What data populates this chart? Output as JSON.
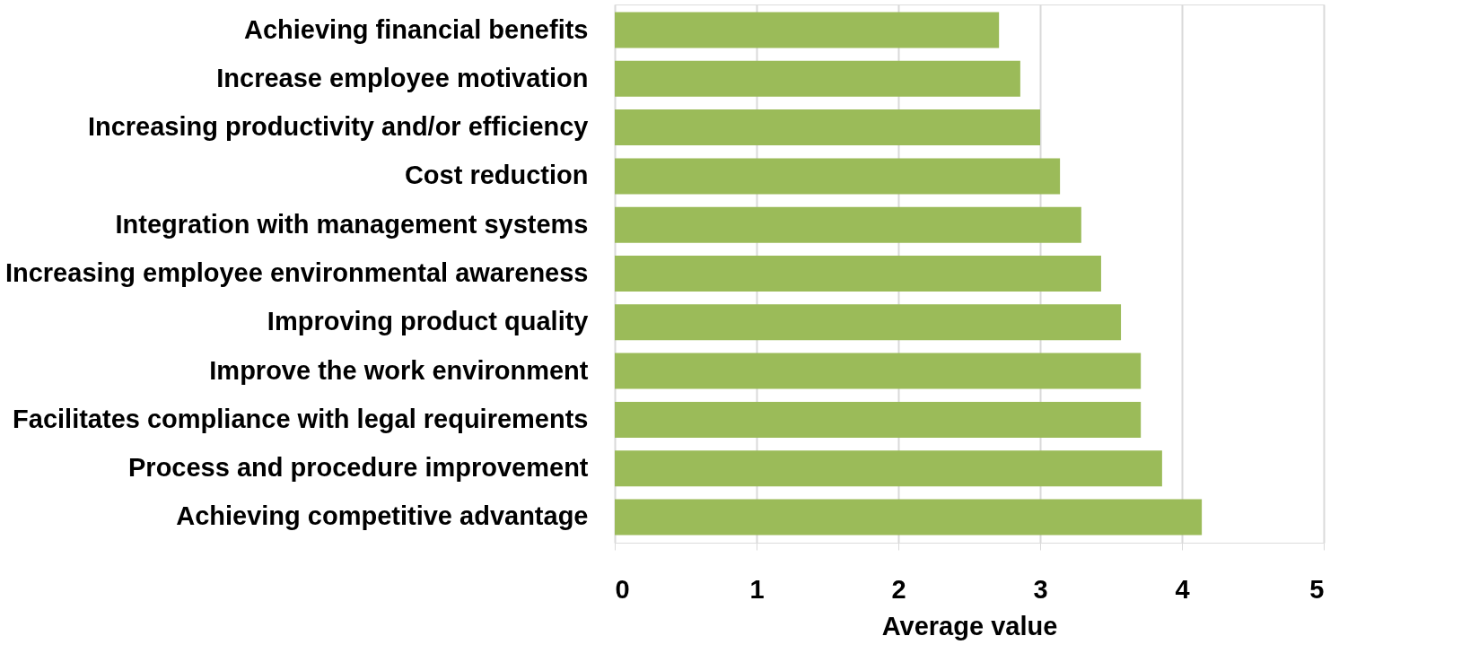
{
  "chart_data": {
    "type": "bar",
    "orientation": "horizontal",
    "xlabel": "Average value",
    "categories": [
      "Achieving financial benefits",
      "Increase employee motivation",
      "Increasing productivity and/or efficiency",
      "Cost reduction",
      "Integration with management systems",
      "Increasing employee environmental awareness",
      "Improving product quality",
      "Improve the work environment",
      "Facilitates compliance with legal requirements",
      "Process and procedure improvement",
      "Achieving competitive advantage"
    ],
    "values": [
      2.71,
      2.86,
      3.0,
      3.14,
      3.29,
      3.43,
      3.57,
      3.71,
      3.71,
      3.86,
      4.14
    ],
    "color": "#9bbb59",
    "xlim": [
      0,
      5
    ],
    "xticks": [
      0,
      1,
      2,
      3,
      4,
      5
    ],
    "grid": "x"
  }
}
